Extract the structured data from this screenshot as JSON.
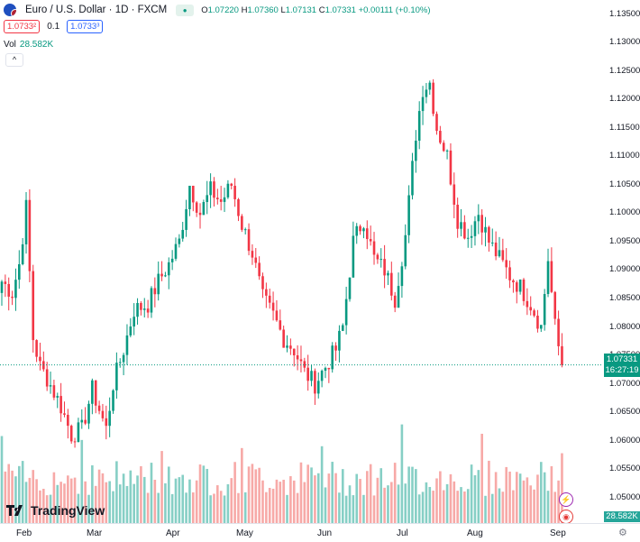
{
  "header": {
    "symbol_title": "Euro / U.S. Dollar · 1D · FXCM",
    "ohlc": {
      "o_label": "O",
      "o": "1.07220",
      "h_label": "H",
      "h": "1.07360",
      "l_label": "L",
      "l": "1.07131",
      "c_label": "C",
      "c": "1.07331",
      "change": "+0.00111 (+0.10%)"
    },
    "sell_price": "1.0733²",
    "spread": "0.1",
    "buy_price": "1.0733³",
    "volume_label": "Vol",
    "volume_value": "28.582K"
  },
  "price_scale": {
    "ticks": [
      "1.13500",
      "1.13000",
      "1.12500",
      "1.12000",
      "1.11500",
      "1.11000",
      "1.10500",
      "1.10000",
      "1.09500",
      "1.09000",
      "1.08500",
      "1.08000",
      "1.07500",
      "1.07000",
      "1.06500",
      "1.06000",
      "1.05500",
      "1.05000"
    ],
    "last_price": "1.07331",
    "countdown": "16:27:19",
    "volume_badge": "28.582K"
  },
  "time_scale": {
    "labels": [
      "Feb",
      "Mar",
      "Apr",
      "May",
      "Jun",
      "Jul",
      "Aug",
      "Sep"
    ]
  },
  "branding": {
    "logo_text": "TradingView"
  },
  "colors": {
    "up": "#089981",
    "down": "#f23645",
    "vol_up": "#86cfc5",
    "vol_down": "#f7a9a7"
  },
  "chart_data": {
    "type": "candlestick",
    "ylim": [
      1.0455,
      1.1375
    ],
    "last_price": 1.07331,
    "x_labels": [
      "Feb",
      "Mar",
      "Apr",
      "May",
      "Jun",
      "Jul",
      "Aug",
      "Sep"
    ],
    "waypoints": [
      [
        0,
        1.088
      ],
      [
        3,
        1.086
      ],
      [
        5,
        1.091
      ],
      [
        7,
        1.101
      ],
      [
        9,
        1.078
      ],
      [
        11,
        1.073
      ],
      [
        13,
        1.071
      ],
      [
        17,
        1.066
      ],
      [
        20,
        1.061
      ],
      [
        23,
        1.062
      ],
      [
        26,
        1.069
      ],
      [
        30,
        1.062
      ],
      [
        32,
        1.07
      ],
      [
        35,
        1.076
      ],
      [
        38,
        1.083
      ],
      [
        42,
        1.084
      ],
      [
        45,
        1.088
      ],
      [
        48,
        1.091
      ],
      [
        51,
        1.095
      ],
      [
        54,
        1.105
      ],
      [
        57,
        1.1
      ],
      [
        60,
        1.104
      ],
      [
        63,
        1.102
      ],
      [
        66,
        1.105
      ],
      [
        69,
        1.098
      ],
      [
        72,
        1.093
      ],
      [
        75,
        1.085
      ],
      [
        78,
        1.082
      ],
      [
        81,
        1.078
      ],
      [
        84,
        1.076
      ],
      [
        87,
        1.072
      ],
      [
        90,
        1.07
      ],
      [
        93,
        1.073
      ],
      [
        96,
        1.076
      ],
      [
        98,
        1.08
      ],
      [
        101,
        1.095
      ],
      [
        104,
        1.099
      ],
      [
        107,
        1.092
      ],
      [
        110,
        1.09
      ],
      [
        113,
        1.085
      ],
      [
        116,
        1.096
      ],
      [
        119,
        1.114
      ],
      [
        121,
        1.122
      ],
      [
        123,
        1.123
      ],
      [
        125,
        1.115
      ],
      [
        128,
        1.11
      ],
      [
        131,
        1.099
      ],
      [
        134,
        1.096
      ],
      [
        137,
        1.1
      ],
      [
        140,
        1.095
      ],
      [
        143,
        1.092
      ],
      [
        146,
        1.089
      ],
      [
        149,
        1.087
      ],
      [
        152,
        1.084
      ],
      [
        155,
        1.08
      ],
      [
        157,
        1.092
      ],
      [
        159,
        1.08
      ],
      [
        161,
        1.073
      ]
    ]
  }
}
